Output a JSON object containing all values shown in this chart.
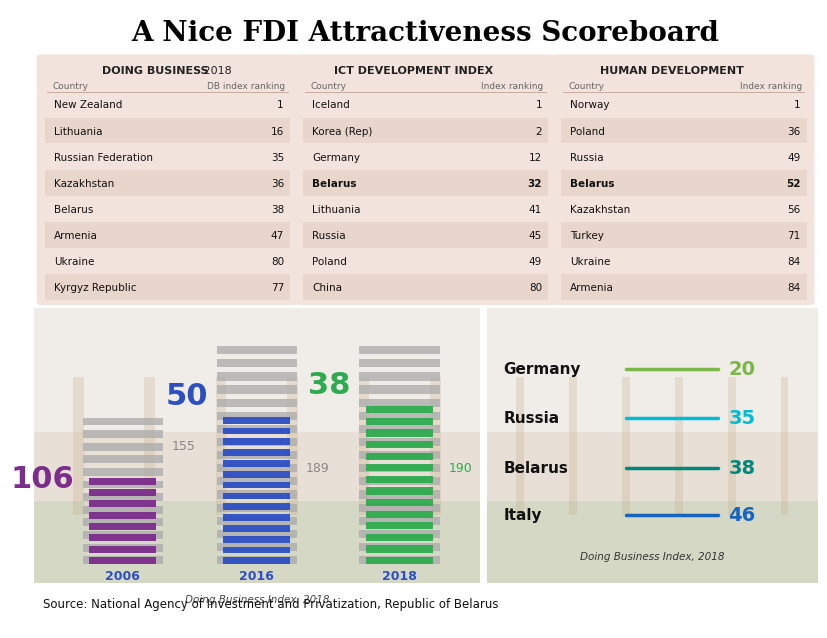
{
  "title": "A Nice FDI Attractiveness Scoreboard",
  "title_fontsize": 20,
  "background_color": "#ffffff",
  "panel_bg": "#f2e4dc",
  "panel_alt_row": "#e8d5cc",
  "doing_business": {
    "header_bold": "DOING BUSINESS",
    "header_year": " 2018",
    "col1": "Country",
    "col2": "DB index ranking",
    "rows": [
      [
        "New Zealand",
        "1"
      ],
      [
        "Lithuania",
        "16"
      ],
      [
        "Russian Federation",
        "35"
      ],
      [
        "Kazakhstan",
        "36"
      ],
      [
        "Belarus",
        "38"
      ],
      [
        "Armenia",
        "47"
      ],
      [
        "Ukraine",
        "80"
      ],
      [
        "Kyrgyz Republic",
        "77"
      ]
    ],
    "bold_rows": []
  },
  "ict_index": {
    "header": "ICT DEVELOPMENT INDEX",
    "col1": "Country",
    "col2": "Index ranking",
    "rows": [
      [
        "Iceland",
        "1"
      ],
      [
        "Korea (Rep)",
        "2"
      ],
      [
        "Germany",
        "12"
      ],
      [
        "Belarus",
        "32"
      ],
      [
        "Lithuania",
        "41"
      ],
      [
        "Russia",
        "45"
      ],
      [
        "Poland",
        "49"
      ],
      [
        "China",
        "80"
      ]
    ],
    "bold_rows": [
      3
    ]
  },
  "human_dev": {
    "header": "HUMAN DEVELOPMENT",
    "col1": "Country",
    "col2": "Index ranking",
    "rows": [
      [
        "Norway",
        "1"
      ],
      [
        "Poland",
        "36"
      ],
      [
        "Russia",
        "49"
      ],
      [
        "Belarus",
        "52"
      ],
      [
        "Kazakhstan",
        "56"
      ],
      [
        "Turkey",
        "71"
      ],
      [
        "Ukraine",
        "84"
      ],
      [
        "Armenia",
        "84"
      ]
    ],
    "bold_rows": [
      3
    ]
  },
  "bar_chart": {
    "years": [
      "2006",
      "2016",
      "2018"
    ],
    "rank_labels": [
      "106",
      "50",
      "38"
    ],
    "total_labels": [
      "155",
      "189",
      "190"
    ],
    "colors": [
      "#7b2d8b",
      "#2d4fc4",
      "#2eab4e"
    ],
    "total_label_colors": [
      "#888888",
      "#888888",
      "#2eab4e"
    ],
    "year_label_color": "#2d4fc4",
    "source_label": "Doing Business Index, 2018",
    "colored_bars": [
      8,
      14,
      14
    ],
    "gray_bars": [
      12,
      17,
      17
    ],
    "bg_color_top": "#f5f0ec",
    "bg_color_mid": "#e8ddd5",
    "bg_color_bot": "#c8d5b0"
  },
  "legend_chart": {
    "items": [
      {
        "country": "Germany",
        "value": "20",
        "num_color": "#7ab648",
        "line_color": "#7ab648"
      },
      {
        "country": "Russia",
        "value": "35",
        "num_color": "#00bcd4",
        "line_color": "#00bcd4"
      },
      {
        "country": "Belarus",
        "value": "38",
        "num_color": "#00897b",
        "line_color": "#00897b"
      },
      {
        "country": "Italy",
        "value": "46",
        "num_color": "#1565c0",
        "line_color": "#1565c0"
      }
    ],
    "source_label": "Doing Business Index, 2018",
    "bg_color_top": "#f5f0ec",
    "bg_color_mid": "#e8ddd5",
    "bg_color_bot": "#c8d5b0"
  },
  "source_text": "Source: National Agency of Investment and Privatization, Republic of Belarus"
}
